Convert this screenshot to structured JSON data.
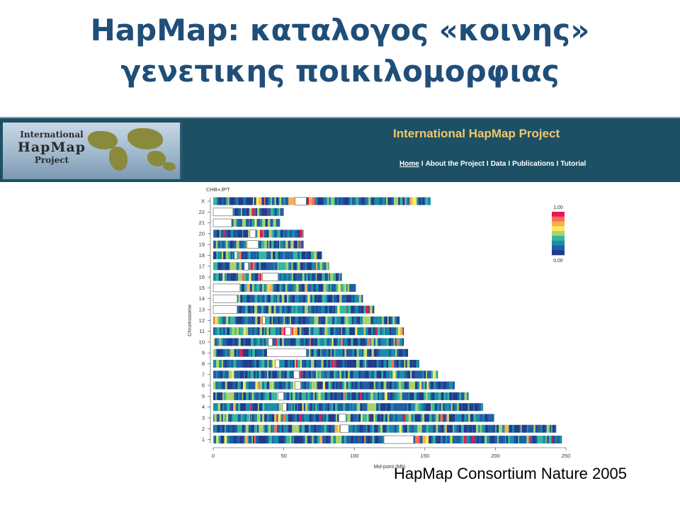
{
  "slide": {
    "title_line1": "HapMap: καταλογος «κοινης»",
    "title_line2": "γενετικης ποικιλομορφιας",
    "caption": "HapMap Consortium Nature 2005"
  },
  "banner": {
    "logo_line1": "International",
    "logo_line2": "HapMap",
    "logo_line3": "Project",
    "title": "International HapMap Project",
    "nav": [
      "Home",
      "About the Project",
      "Data",
      "Publications",
      "Tutorial"
    ],
    "nav_separator": "I",
    "colors": {
      "background": "#1d5065",
      "title": "#f1c96a",
      "nav": "#ffffff"
    }
  },
  "chart_data": {
    "type": "heatmap",
    "title": "CHB+JPT",
    "xlabel": "Mid-point (Mb)",
    "ylabel": "Chromosome",
    "xlim": [
      0,
      250
    ],
    "xticks": [
      "0",
      "50",
      "100",
      "150",
      "200",
      "250"
    ],
    "colorbar": {
      "max_label": "1,00",
      "min_label": "0,00",
      "colors": [
        "#e8194d",
        "#fa6e57",
        "#fcae4f",
        "#f7ea60",
        "#a7d46b",
        "#35b79e",
        "#1a8da8",
        "#1f5fa4",
        "#223a8c"
      ]
    },
    "chromosomes": [
      {
        "name": "X",
        "length": 154,
        "gaps": [
          [
            58,
            66
          ]
        ],
        "hot": [
          [
            53,
            58
          ],
          [
            66,
            70
          ],
          [
            30,
            33
          ]
        ]
      },
      {
        "name": "22",
        "length": 50,
        "gaps": [
          [
            0,
            14
          ]
        ],
        "hot": [
          [
            26,
            28
          ]
        ]
      },
      {
        "name": "21",
        "length": 47,
        "gaps": [
          [
            0,
            13
          ]
        ],
        "hot": []
      },
      {
        "name": "20",
        "length": 64,
        "gaps": [
          [
            26,
            30
          ]
        ],
        "hot": [
          [
            24,
            26
          ],
          [
            30,
            34
          ]
        ]
      },
      {
        "name": "19",
        "length": 64,
        "gaps": [
          [
            24,
            32
          ]
        ],
        "hot": [
          [
            22,
            24
          ]
        ]
      },
      {
        "name": "18",
        "length": 77,
        "gaps": [
          [
            15,
            17
          ]
        ],
        "hot": [
          [
            18,
            20
          ]
        ]
      },
      {
        "name": "17",
        "length": 82,
        "gaps": [
          [
            22,
            25
          ]
        ],
        "hot": [
          [
            26,
            29
          ]
        ]
      },
      {
        "name": "16",
        "length": 91,
        "gaps": [
          [
            35,
            46
          ]
        ],
        "hot": [
          [
            32,
            35
          ]
        ]
      },
      {
        "name": "15",
        "length": 101,
        "gaps": [
          [
            0,
            19
          ]
        ],
        "hot": [
          [
            38,
            41
          ]
        ]
      },
      {
        "name": "14",
        "length": 106,
        "gaps": [
          [
            0,
            17
          ]
        ],
        "hot": []
      },
      {
        "name": "13",
        "length": 114,
        "gaps": [
          [
            0,
            17
          ]
        ],
        "hot": []
      },
      {
        "name": "12",
        "length": 132,
        "gaps": [
          [
            35,
            37
          ]
        ],
        "hot": [
          [
            33,
            35
          ]
        ]
      },
      {
        "name": "11",
        "length": 135,
        "gaps": [
          [
            51,
            55
          ]
        ],
        "hot": [
          [
            48,
            51
          ],
          [
            55,
            57
          ]
        ]
      },
      {
        "name": "10",
        "length": 135,
        "gaps": [
          [
            39,
            42
          ]
        ],
        "hot": [
          [
            42,
            44
          ]
        ]
      },
      {
        "name": "9",
        "length": 138,
        "gaps": [
          [
            38,
            66
          ]
        ],
        "hot": []
      },
      {
        "name": "8",
        "length": 146,
        "gaps": [
          [
            44,
            47
          ]
        ],
        "hot": [
          [
            42,
            44
          ]
        ]
      },
      {
        "name": "7",
        "length": 159,
        "gaps": [
          [
            57,
            61
          ]
        ],
        "hot": [
          [
            61,
            63
          ]
        ]
      },
      {
        "name": "6",
        "length": 171,
        "gaps": [
          [
            58,
            62
          ]
        ],
        "hot": [
          [
            56,
            58
          ]
        ]
      },
      {
        "name": "5",
        "length": 181,
        "gaps": [
          [
            46,
            50
          ]
        ],
        "hot": [
          [
            44,
            46
          ]
        ]
      },
      {
        "name": "4",
        "length": 191,
        "gaps": [
          [
            49,
            52
          ]
        ],
        "hot": [
          [
            47,
            49
          ]
        ]
      },
      {
        "name": "3",
        "length": 199,
        "gaps": [
          [
            89,
            94
          ]
        ],
        "hot": [
          [
            44,
            47
          ]
        ]
      },
      {
        "name": "2",
        "length": 243,
        "gaps": [
          [
            90,
            96
          ]
        ],
        "hot": [
          [
            86,
            89
          ]
        ]
      },
      {
        "name": "1",
        "length": 247,
        "gaps": [
          [
            121,
            142
          ]
        ],
        "hot": [
          [
            143,
            146
          ]
        ]
      }
    ]
  }
}
